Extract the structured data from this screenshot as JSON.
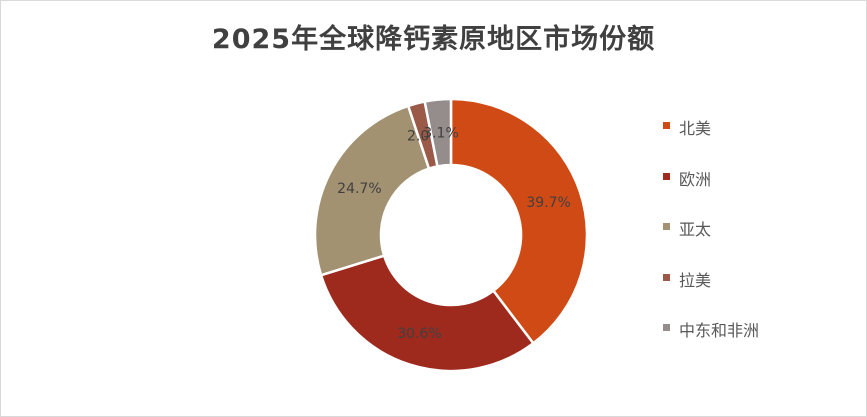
{
  "chart_data": {
    "type": "pie",
    "title": "2025年全球降钙素原地区市场份额",
    "hole": true,
    "legend_position": "right",
    "slices": [
      {
        "name": "北美",
        "value": 39.7,
        "label": "39.7%",
        "color": "#D04A16"
      },
      {
        "name": "欧洲",
        "value": 30.6,
        "label": "30.6%",
        "color": "#9E2A1E"
      },
      {
        "name": "亚太",
        "value": 24.7,
        "label": "24.7%",
        "color": "#A39272"
      },
      {
        "name": "拉美",
        "value": 2.0,
        "label": "2.0%",
        "color": "#9B5A48"
      },
      {
        "name": "中东和非洲",
        "value": 3.1,
        "label": "3.1%",
        "color": "#958C8C"
      }
    ]
  }
}
